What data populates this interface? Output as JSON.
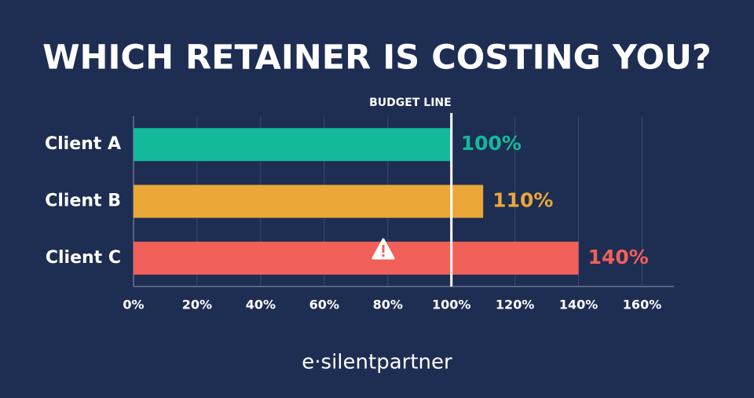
{
  "chart_data": {
    "type": "hbar",
    "title": "WHICH RETAINER IS COSTING YOU?",
    "categories": [
      "Client A",
      "Client B",
      "Client C"
    ],
    "values": [
      100,
      110,
      140
    ],
    "value_labels": [
      "100%",
      "110%",
      "140%"
    ],
    "colors": [
      "#14b99c",
      "#e9a838",
      "#f2605a"
    ],
    "xlim": [
      0,
      170
    ],
    "xticks": [
      {
        "value": 0,
        "label": "0%"
      },
      {
        "value": 20,
        "label": "20%"
      },
      {
        "value": 40,
        "label": "40%"
      },
      {
        "value": 60,
        "label": "60%"
      },
      {
        "value": 80,
        "label": "80%"
      },
      {
        "value": 100,
        "label": "100%"
      },
      {
        "value": 120,
        "label": "120%"
      },
      {
        "value": 140,
        "label": "140%"
      },
      {
        "value": 160,
        "label": "160%"
      }
    ],
    "grid": true,
    "reference_line": {
      "value": 100,
      "label": "BUDGET LINE"
    },
    "brand": "e·silentpartner"
  }
}
